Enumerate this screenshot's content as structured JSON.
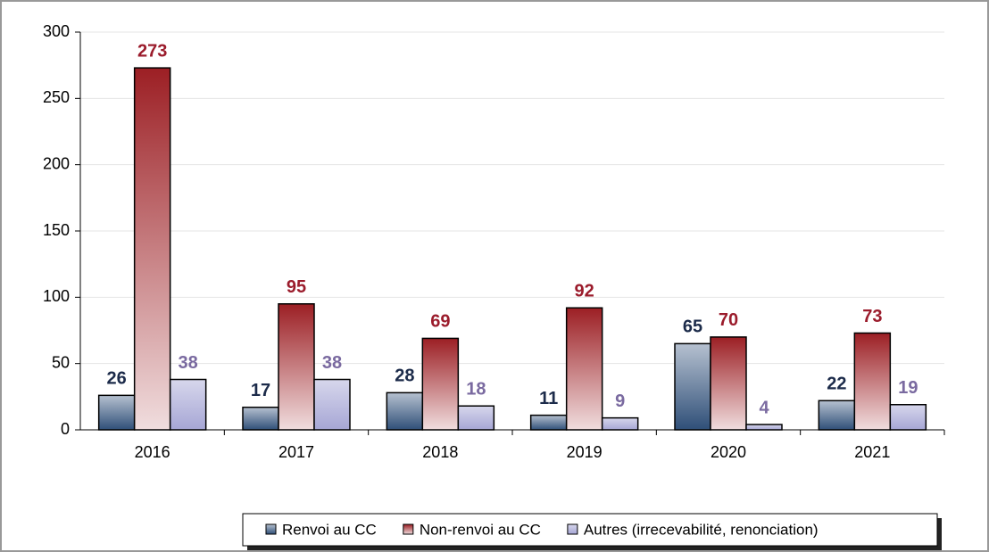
{
  "chart_data": {
    "type": "bar",
    "categories": [
      "2016",
      "2017",
      "2018",
      "2019",
      "2020",
      "2021"
    ],
    "series": [
      {
        "name": "Renvoi au CC",
        "color": "#2f4f78",
        "label_color": "#1c2b4a",
        "values": [
          26,
          17,
          28,
          11,
          65,
          22
        ]
      },
      {
        "name": "Non-renvoi au CC",
        "color": "#9c1f24",
        "label_color": "#9b1c2c",
        "values": [
          273,
          95,
          69,
          92,
          70,
          73
        ]
      },
      {
        "name": "Autres (irrecevabilité, renonciation)",
        "color": "#9c9cd0",
        "label_color": "#7a6aa0",
        "values": [
          38,
          38,
          18,
          9,
          4,
          19
        ]
      }
    ],
    "ylim": [
      0,
      300
    ],
    "yticks": [
      0,
      50,
      100,
      150,
      200,
      250,
      300
    ],
    "grid": true,
    "legend": "bottom-right"
  }
}
